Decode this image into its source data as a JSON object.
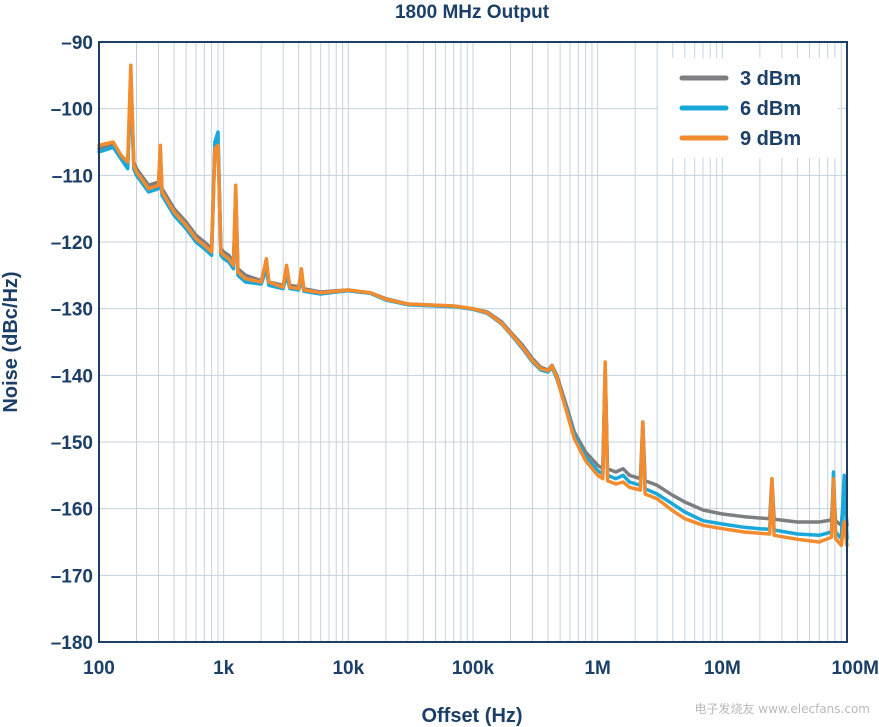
{
  "chart_data": {
    "type": "line",
    "title": "1800 MHz Output",
    "xlabel": "Offset (Hz)",
    "ylabel": "Noise (dBc/Hz)",
    "x_scale": "log",
    "xlim": [
      100,
      100000000
    ],
    "ylim": [
      -180,
      -90
    ],
    "grid": true,
    "legend_position": "top-right",
    "x_ticks": [
      {
        "value": 100,
        "label": "100"
      },
      {
        "value": 1000,
        "label": "1k"
      },
      {
        "value": 10000,
        "label": "10k"
      },
      {
        "value": 100000,
        "label": "100k"
      },
      {
        "value": 1000000,
        "label": "1M"
      },
      {
        "value": 10000000,
        "label": "10M"
      },
      {
        "value": 100000000,
        "label": "100M"
      }
    ],
    "y_ticks": [
      {
        "value": -90,
        "label": "–90"
      },
      {
        "value": -100,
        "label": "–100"
      },
      {
        "value": -110,
        "label": "–110"
      },
      {
        "value": -120,
        "label": "–120"
      },
      {
        "value": -130,
        "label": "–130"
      },
      {
        "value": -140,
        "label": "–140"
      },
      {
        "value": -150,
        "label": "–150"
      },
      {
        "value": -160,
        "label": "–160"
      },
      {
        "value": -170,
        "label": "–170"
      },
      {
        "value": -180,
        "label": "–180"
      }
    ],
    "series": [
      {
        "name": "3 dBm",
        "color": "#7d7e80",
        "points": [
          [
            100,
            -106
          ],
          [
            130,
            -105.5
          ],
          [
            150,
            -107
          ],
          [
            170,
            -108.5
          ],
          [
            180,
            -95
          ],
          [
            190,
            -108
          ],
          [
            200,
            -109
          ],
          [
            250,
            -111.5
          ],
          [
            300,
            -111
          ],
          [
            310,
            -106.5
          ],
          [
            320,
            -112
          ],
          [
            400,
            -115
          ],
          [
            500,
            -117
          ],
          [
            600,
            -119
          ],
          [
            700,
            -120
          ],
          [
            800,
            -121
          ],
          [
            850,
            -106
          ],
          [
            900,
            -105
          ],
          [
            950,
            -121
          ],
          [
            1000,
            -121.5
          ],
          [
            1100,
            -122
          ],
          [
            1200,
            -123
          ],
          [
            1250,
            -112.5
          ],
          [
            1300,
            -124
          ],
          [
            1500,
            -125
          ],
          [
            2000,
            -125.8
          ],
          [
            2200,
            -123
          ],
          [
            2300,
            -126
          ],
          [
            3000,
            -126.5
          ],
          [
            3200,
            -124
          ],
          [
            3400,
            -126.5
          ],
          [
            4000,
            -126.7
          ],
          [
            4200,
            -124.5
          ],
          [
            4400,
            -127
          ],
          [
            6000,
            -127.5
          ],
          [
            8000,
            -127.3
          ],
          [
            10000,
            -127.2
          ],
          [
            12000,
            -127.4
          ],
          [
            15000,
            -127.6
          ],
          [
            20000,
            -128.5
          ],
          [
            30000,
            -129.3
          ],
          [
            50000,
            -129.5
          ],
          [
            70000,
            -129.6
          ],
          [
            100000,
            -130
          ],
          [
            130000,
            -130.5
          ],
          [
            170000,
            -132
          ],
          [
            200000,
            -133.5
          ],
          [
            250000,
            -135.5
          ],
          [
            300000,
            -137.5
          ],
          [
            350000,
            -138.8
          ],
          [
            400000,
            -139.2
          ],
          [
            430000,
            -138.5
          ],
          [
            470000,
            -140
          ],
          [
            550000,
            -144
          ],
          [
            650000,
            -148.5
          ],
          [
            800000,
            -151.5
          ],
          [
            1000000,
            -153.5
          ],
          [
            1100000,
            -154
          ],
          [
            1150000,
            -139
          ],
          [
            1200000,
            -154
          ],
          [
            1400000,
            -154.5
          ],
          [
            1600000,
            -154
          ],
          [
            1800000,
            -155
          ],
          [
            2200000,
            -155.5
          ],
          [
            2300000,
            -147
          ],
          [
            2400000,
            -155.8
          ],
          [
            3000000,
            -156.5
          ],
          [
            4000000,
            -158
          ],
          [
            5000000,
            -159
          ],
          [
            7000000,
            -160.2
          ],
          [
            10000000,
            -160.8
          ],
          [
            15000000,
            -161.2
          ],
          [
            20000000,
            -161.4
          ],
          [
            24000000,
            -161.5
          ],
          [
            25000000,
            -155.5
          ],
          [
            26000000,
            -161.6
          ],
          [
            40000000,
            -162
          ],
          [
            60000000,
            -162
          ],
          [
            75000000,
            -161.7
          ],
          [
            78000000,
            -157
          ],
          [
            81000000,
            -161.8
          ],
          [
            90000000,
            -162.5
          ],
          [
            95000000,
            -157
          ],
          [
            100000000,
            -162.5
          ]
        ]
      },
      {
        "name": "6 dBm",
        "color": "#1aa7d9",
        "points": [
          [
            100,
            -106.5
          ],
          [
            130,
            -105.8
          ],
          [
            150,
            -107.5
          ],
          [
            170,
            -109
          ],
          [
            180,
            -96.5
          ],
          [
            190,
            -109
          ],
          [
            200,
            -110
          ],
          [
            250,
            -112.5
          ],
          [
            300,
            -112
          ],
          [
            310,
            -107.5
          ],
          [
            320,
            -113
          ],
          [
            400,
            -116
          ],
          [
            500,
            -118
          ],
          [
            600,
            -120
          ],
          [
            700,
            -121
          ],
          [
            800,
            -122
          ],
          [
            850,
            -105
          ],
          [
            900,
            -103.5
          ],
          [
            950,
            -122
          ],
          [
            1000,
            -122.5
          ],
          [
            1100,
            -123
          ],
          [
            1200,
            -124
          ],
          [
            1250,
            -113.5
          ],
          [
            1300,
            -125
          ],
          [
            1500,
            -126
          ],
          [
            2000,
            -126.3
          ],
          [
            2200,
            -124
          ],
          [
            2300,
            -126.5
          ],
          [
            3000,
            -127
          ],
          [
            3200,
            -125
          ],
          [
            3400,
            -127
          ],
          [
            4000,
            -127.2
          ],
          [
            4200,
            -125.5
          ],
          [
            4400,
            -127.4
          ],
          [
            6000,
            -127.8
          ],
          [
            8000,
            -127.5
          ],
          [
            10000,
            -127.3
          ],
          [
            12000,
            -127.5
          ],
          [
            15000,
            -127.7
          ],
          [
            20000,
            -128.7
          ],
          [
            30000,
            -129.4
          ],
          [
            50000,
            -129.6
          ],
          [
            70000,
            -129.7
          ],
          [
            100000,
            -130.1
          ],
          [
            130000,
            -130.7
          ],
          [
            170000,
            -132.3
          ],
          [
            200000,
            -133.8
          ],
          [
            250000,
            -136
          ],
          [
            300000,
            -138
          ],
          [
            350000,
            -139.2
          ],
          [
            400000,
            -139.5
          ],
          [
            430000,
            -138.8
          ],
          [
            470000,
            -140.5
          ],
          [
            550000,
            -144.5
          ],
          [
            650000,
            -149
          ],
          [
            800000,
            -152.3
          ],
          [
            1000000,
            -154.3
          ],
          [
            1100000,
            -154.8
          ],
          [
            1150000,
            -139.5
          ],
          [
            1200000,
            -155
          ],
          [
            1400000,
            -155.5
          ],
          [
            1600000,
            -155
          ],
          [
            1800000,
            -156
          ],
          [
            2200000,
            -156.5
          ],
          [
            2300000,
            -148
          ],
          [
            2400000,
            -157
          ],
          [
            3000000,
            -157.8
          ],
          [
            4000000,
            -159.3
          ],
          [
            5000000,
            -160.5
          ],
          [
            7000000,
            -161.8
          ],
          [
            10000000,
            -162.3
          ],
          [
            15000000,
            -162.8
          ],
          [
            20000000,
            -163
          ],
          [
            24000000,
            -163.1
          ],
          [
            25000000,
            -157
          ],
          [
            26000000,
            -163.2
          ],
          [
            40000000,
            -163.8
          ],
          [
            60000000,
            -164
          ],
          [
            75000000,
            -163.5
          ],
          [
            78000000,
            -154.5
          ],
          [
            81000000,
            -163.5
          ],
          [
            90000000,
            -164.5
          ],
          [
            95000000,
            -155
          ],
          [
            100000000,
            -164.5
          ]
        ]
      },
      {
        "name": "9 dBm",
        "color": "#f28c2e",
        "points": [
          [
            100,
            -105.5
          ],
          [
            130,
            -105
          ],
          [
            150,
            -107
          ],
          [
            170,
            -108
          ],
          [
            180,
            -93.5
          ],
          [
            190,
            -108.5
          ],
          [
            200,
            -109.5
          ],
          [
            250,
            -112
          ],
          [
            300,
            -111.5
          ],
          [
            310,
            -105.5
          ],
          [
            320,
            -112.5
          ],
          [
            400,
            -115.5
          ],
          [
            500,
            -117.5
          ],
          [
            600,
            -119.5
          ],
          [
            700,
            -120.5
          ],
          [
            800,
            -121.5
          ],
          [
            850,
            -106
          ],
          [
            900,
            -105.5
          ],
          [
            950,
            -121.5
          ],
          [
            1000,
            -122
          ],
          [
            1100,
            -122.5
          ],
          [
            1200,
            -123.5
          ],
          [
            1250,
            -111.5
          ],
          [
            1300,
            -124.5
          ],
          [
            1500,
            -125.5
          ],
          [
            2000,
            -126
          ],
          [
            2200,
            -122.5
          ],
          [
            2300,
            -126
          ],
          [
            3000,
            -126.8
          ],
          [
            3200,
            -123.5
          ],
          [
            3400,
            -126.8
          ],
          [
            4000,
            -127
          ],
          [
            4200,
            -124
          ],
          [
            4400,
            -127.2
          ],
          [
            6000,
            -127.6
          ],
          [
            8000,
            -127.4
          ],
          [
            10000,
            -127.2
          ],
          [
            12000,
            -127.4
          ],
          [
            15000,
            -127.6
          ],
          [
            20000,
            -128.6
          ],
          [
            30000,
            -129.3
          ],
          [
            50000,
            -129.5
          ],
          [
            70000,
            -129.6
          ],
          [
            100000,
            -130
          ],
          [
            130000,
            -130.6
          ],
          [
            170000,
            -132.2
          ],
          [
            200000,
            -133.7
          ],
          [
            250000,
            -135.8
          ],
          [
            300000,
            -137.8
          ],
          [
            350000,
            -139
          ],
          [
            400000,
            -139.3
          ],
          [
            430000,
            -138.6
          ],
          [
            470000,
            -140.3
          ],
          [
            550000,
            -144.8
          ],
          [
            650000,
            -149.5
          ],
          [
            800000,
            -152.8
          ],
          [
            1000000,
            -155
          ],
          [
            1100000,
            -155.5
          ],
          [
            1150000,
            -138
          ],
          [
            1200000,
            -155.8
          ],
          [
            1400000,
            -156.3
          ],
          [
            1600000,
            -156
          ],
          [
            1800000,
            -156.8
          ],
          [
            2200000,
            -157.2
          ],
          [
            2300000,
            -147
          ],
          [
            2400000,
            -157.8
          ],
          [
            3000000,
            -158.5
          ],
          [
            4000000,
            -160.3
          ],
          [
            5000000,
            -161.5
          ],
          [
            7000000,
            -162.5
          ],
          [
            10000000,
            -163
          ],
          [
            15000000,
            -163.5
          ],
          [
            20000000,
            -163.7
          ],
          [
            24000000,
            -163.8
          ],
          [
            25000000,
            -155.5
          ],
          [
            26000000,
            -164
          ],
          [
            40000000,
            -164.6
          ],
          [
            60000000,
            -165
          ],
          [
            75000000,
            -164.3
          ],
          [
            78000000,
            -155.5
          ],
          [
            81000000,
            -164.5
          ],
          [
            90000000,
            -165.5
          ],
          [
            95000000,
            -162
          ],
          [
            100000000,
            -165.5
          ]
        ]
      }
    ]
  },
  "watermark": {
    "text": "电子发烧友 www.elecfans.com"
  }
}
